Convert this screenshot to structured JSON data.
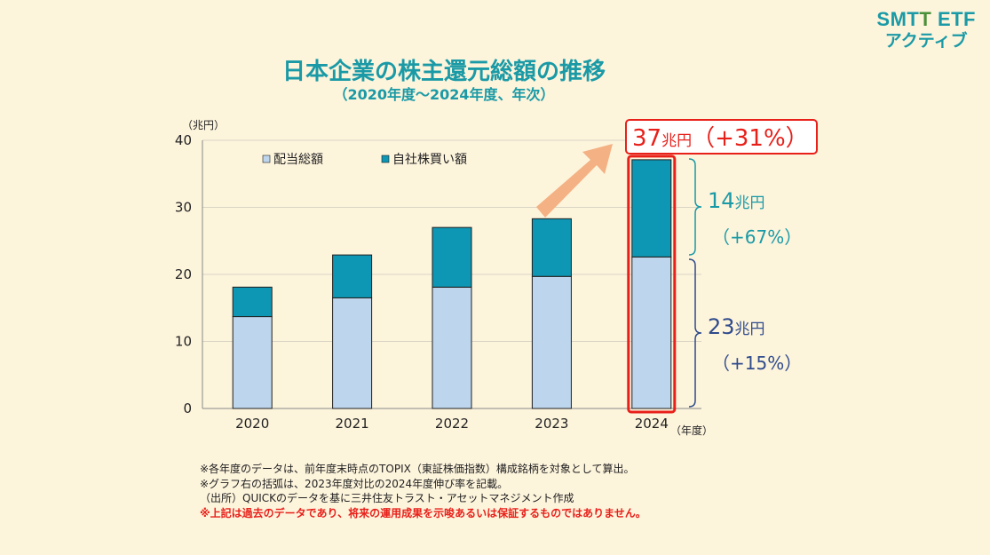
{
  "logo": {
    "line1_a": "SMT",
    "line1_b": "T",
    "line1_c": " ETF",
    "line2": "アクティブ"
  },
  "title": "日本企業の株主還元総額の推移",
  "subtitle": "（2020年度～2024年度、年次）",
  "colors": {
    "dividends": "#bdd6ee",
    "buyback": "#0e97b4",
    "highlight": "#e8201a",
    "arrow": "#f4b183",
    "teal": "#1a9aa6",
    "navy": "#2f4b8c"
  },
  "chart_data": {
    "type": "bar",
    "stacked": true,
    "categories": [
      "2020",
      "2021",
      "2022",
      "2023",
      "2024"
    ],
    "series": [
      {
        "name": "配当総額",
        "values": [
          13.7,
          16.5,
          18.1,
          19.7,
          22.6
        ]
      },
      {
        "name": "自社株買い額",
        "values": [
          4.4,
          6.4,
          8.9,
          8.6,
          14.5
        ]
      }
    ],
    "ylabel": "（兆円）",
    "xlabel": "（年度）",
    "ylim": [
      0,
      40
    ],
    "yticks": [
      "0",
      "10",
      "20",
      "30",
      "40"
    ],
    "grid": true,
    "legend": "top-left"
  },
  "annotations": {
    "total_value": "37",
    "total_unit": "兆円",
    "total_pct": "（+31%）",
    "buyback_value": "14",
    "buyback_unit": "兆円",
    "buyback_pct": "（+67%）",
    "dividend_value": "23",
    "dividend_unit": "兆円",
    "dividend_pct": "（+15%）"
  },
  "notes": [
    "※各年度のデータは、前年度末時点のTOPIX（東証株価指数）構成銘柄を対象として算出。",
    "※グラフ右の括弧は、2023年度対比の2024年度伸び率を記載。",
    "（出所）QUICKのデータを基に三井住友トラスト・アセットマネジメント作成",
    "※上記は過去のデータであり、将来の運用成果を示唆あるいは保証するものではありません。"
  ]
}
